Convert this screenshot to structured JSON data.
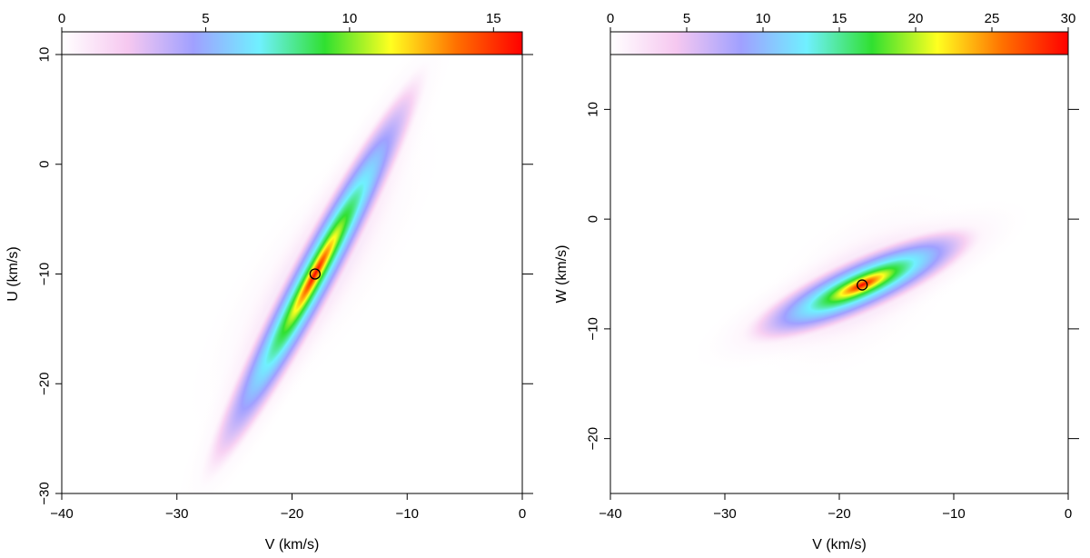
{
  "chart_data": [
    {
      "type": "heatmap",
      "panel": "left",
      "xlabel": "V (km/s)",
      "ylabel": "U (km/s)",
      "xlim": [
        -40,
        0
      ],
      "ylim": [
        -30,
        10
      ],
      "xticks": [
        -40,
        -30,
        -20,
        -10,
        0
      ],
      "yticks": [
        -30,
        -20,
        -10,
        0,
        10
      ],
      "xtick_labels": [
        "−40",
        "−30",
        "−20",
        "−10",
        "0"
      ],
      "ytick_labels": [
        "−30",
        "−20",
        "−10",
        "0",
        "10"
      ],
      "colorbar": {
        "range": [
          0,
          16
        ],
        "ticks": [
          0,
          5,
          10,
          15
        ],
        "tick_labels": [
          "0",
          "5",
          "10",
          "15"
        ],
        "placement": "top"
      },
      "colormap": [
        "#ffffff",
        "#f6c8f0",
        "#a0a0ff",
        "#70f0ff",
        "#30e030",
        "#ffff20",
        "#ff7000",
        "#ff0000"
      ],
      "density_peak": {
        "x": -18,
        "y": -10,
        "value": 16
      },
      "density_orientation_deg": -62,
      "marker": {
        "x": -18,
        "y": -10,
        "shape": "open-circle"
      }
    },
    {
      "type": "heatmap",
      "panel": "right",
      "xlabel": "V (km/s)",
      "ylabel": "W (km/s)",
      "xlim": [
        -40,
        0
      ],
      "ylim": [
        -25,
        15
      ],
      "xticks": [
        -40,
        -30,
        -20,
        -10,
        0
      ],
      "yticks": [
        -20,
        -10,
        0,
        10
      ],
      "xtick_labels": [
        "−40",
        "−30",
        "−20",
        "−10",
        "0"
      ],
      "ytick_labels": [
        "−20",
        "−10",
        "0",
        "10"
      ],
      "colorbar": {
        "range": [
          0,
          30
        ],
        "ticks": [
          0,
          5,
          10,
          15,
          20,
          25,
          30
        ],
        "tick_labels": [
          "0",
          "5",
          "10",
          "15",
          "20",
          "25",
          "30"
        ],
        "placement": "top"
      },
      "colormap": [
        "#ffffff",
        "#f6c8f0",
        "#a0a0ff",
        "#70f0ff",
        "#30e030",
        "#ffff20",
        "#ff7000",
        "#ff0000"
      ],
      "density_peak": {
        "x": -18,
        "y": -6,
        "value": 30
      },
      "density_orientation_deg": -24,
      "marker": {
        "x": -18,
        "y": -6,
        "shape": "open-circle"
      }
    }
  ]
}
